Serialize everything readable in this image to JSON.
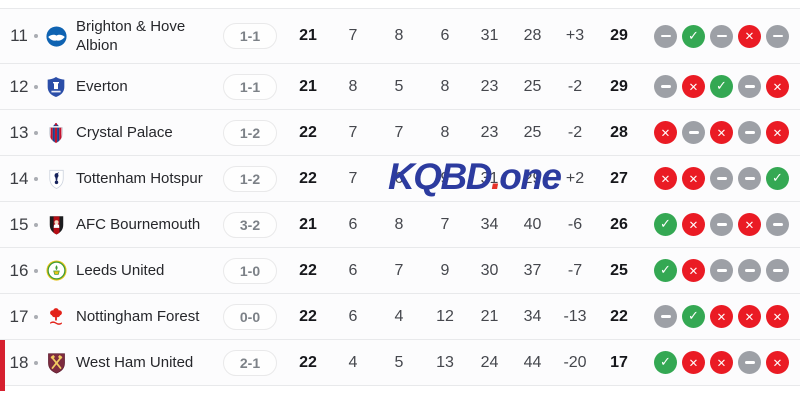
{
  "watermark": {
    "prefix": "KQBD",
    "dot": ".",
    "suffix": "one"
  },
  "colors": {
    "win": "#34a853",
    "loss": "#ea1b24",
    "draw": "#9da0a6",
    "relegation_bar": "#d6202f",
    "watermark_blue": "#2c3b9f",
    "watermark_red": "#e63228"
  },
  "table": {
    "rows": [
      {
        "position": "11",
        "team": "Brighton & Hove Albion",
        "badge": "brighton",
        "last_score": "1-1",
        "played": "21",
        "won": "7",
        "drawn": "8",
        "lost": "6",
        "goals_for": "31",
        "goals_against": "28",
        "goal_diff": "+3",
        "points": "29",
        "form": [
          "draw",
          "win",
          "draw",
          "loss",
          "draw"
        ],
        "relegation": false
      },
      {
        "position": "12",
        "team": "Everton",
        "badge": "everton",
        "last_score": "1-1",
        "played": "21",
        "won": "8",
        "drawn": "5",
        "lost": "8",
        "goals_for": "23",
        "goals_against": "25",
        "goal_diff": "-2",
        "points": "29",
        "form": [
          "draw",
          "loss",
          "win",
          "draw",
          "loss"
        ],
        "relegation": false
      },
      {
        "position": "13",
        "team": "Crystal Palace",
        "badge": "crystal-palace",
        "last_score": "1-2",
        "played": "22",
        "won": "7",
        "drawn": "7",
        "lost": "8",
        "goals_for": "23",
        "goals_against": "25",
        "goal_diff": "-2",
        "points": "28",
        "form": [
          "loss",
          "draw",
          "loss",
          "draw",
          "loss"
        ],
        "relegation": false
      },
      {
        "position": "14",
        "team": "Tottenham Hotspur",
        "badge": "tottenham",
        "last_score": "1-2",
        "played": "22",
        "won": "7",
        "drawn": "6",
        "lost": "9",
        "goals_for": "31",
        "goals_against": "29",
        "goal_diff": "+2",
        "points": "27",
        "form": [
          "loss",
          "loss",
          "draw",
          "draw",
          "win"
        ],
        "relegation": false
      },
      {
        "position": "15",
        "team": "AFC Bournemouth",
        "badge": "bournemouth",
        "last_score": "3-2",
        "played": "21",
        "won": "6",
        "drawn": "8",
        "lost": "7",
        "goals_for": "34",
        "goals_against": "40",
        "goal_diff": "-6",
        "points": "26",
        "form": [
          "win",
          "loss",
          "draw",
          "loss",
          "draw"
        ],
        "relegation": false
      },
      {
        "position": "16",
        "team": "Leeds United",
        "badge": "leeds",
        "last_score": "1-0",
        "played": "22",
        "won": "6",
        "drawn": "7",
        "lost": "9",
        "goals_for": "30",
        "goals_against": "37",
        "goal_diff": "-7",
        "points": "25",
        "form": [
          "win",
          "loss",
          "draw",
          "draw",
          "draw"
        ],
        "relegation": false
      },
      {
        "position": "17",
        "team": "Nottingham Forest",
        "badge": "nottingham-forest",
        "last_score": "0-0",
        "played": "22",
        "won": "6",
        "drawn": "4",
        "lost": "12",
        "goals_for": "21",
        "goals_against": "34",
        "goal_diff": "-13",
        "points": "22",
        "form": [
          "draw",
          "win",
          "loss",
          "loss",
          "loss"
        ],
        "relegation": false
      },
      {
        "position": "18",
        "team": "West Ham United",
        "badge": "west-ham",
        "last_score": "2-1",
        "played": "22",
        "won": "4",
        "drawn": "5",
        "lost": "13",
        "goals_for": "24",
        "goals_against": "44",
        "goal_diff": "-20",
        "points": "17",
        "form": [
          "win",
          "loss",
          "loss",
          "draw",
          "loss"
        ],
        "relegation": true
      }
    ]
  }
}
